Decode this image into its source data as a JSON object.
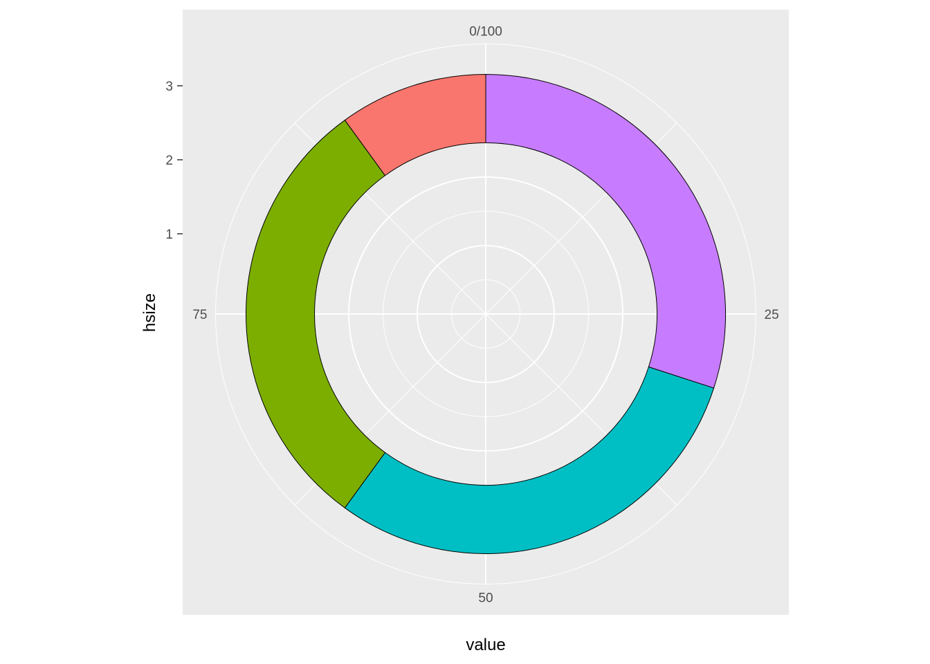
{
  "chart_data": {
    "type": "donut",
    "coord": "polar",
    "xlabel": "value",
    "ylabel": "hsize",
    "theta_axis": {
      "range": [
        0,
        100
      ],
      "ticks": [
        {
          "value": 0,
          "label": "0/100"
        },
        {
          "value": 25,
          "label": "25"
        },
        {
          "value": 50,
          "label": "50"
        },
        {
          "value": 75,
          "label": "75"
        }
      ]
    },
    "radial_axis": {
      "range": [
        0,
        3.5
      ],
      "ticks": [
        {
          "value": 1,
          "label": "1"
        },
        {
          "value": 2,
          "label": "2"
        },
        {
          "value": 3,
          "label": "3"
        }
      ],
      "ring": [
        2.5,
        3.5
      ]
    },
    "legend": "none",
    "grid": true,
    "background": "#ebebeb",
    "slices": [
      {
        "value": 30,
        "color": "#c77cff"
      },
      {
        "value": 30,
        "color": "#00bfc4"
      },
      {
        "value": 30,
        "color": "#7cae00"
      },
      {
        "value": 10,
        "color": "#f8766d"
      }
    ]
  }
}
